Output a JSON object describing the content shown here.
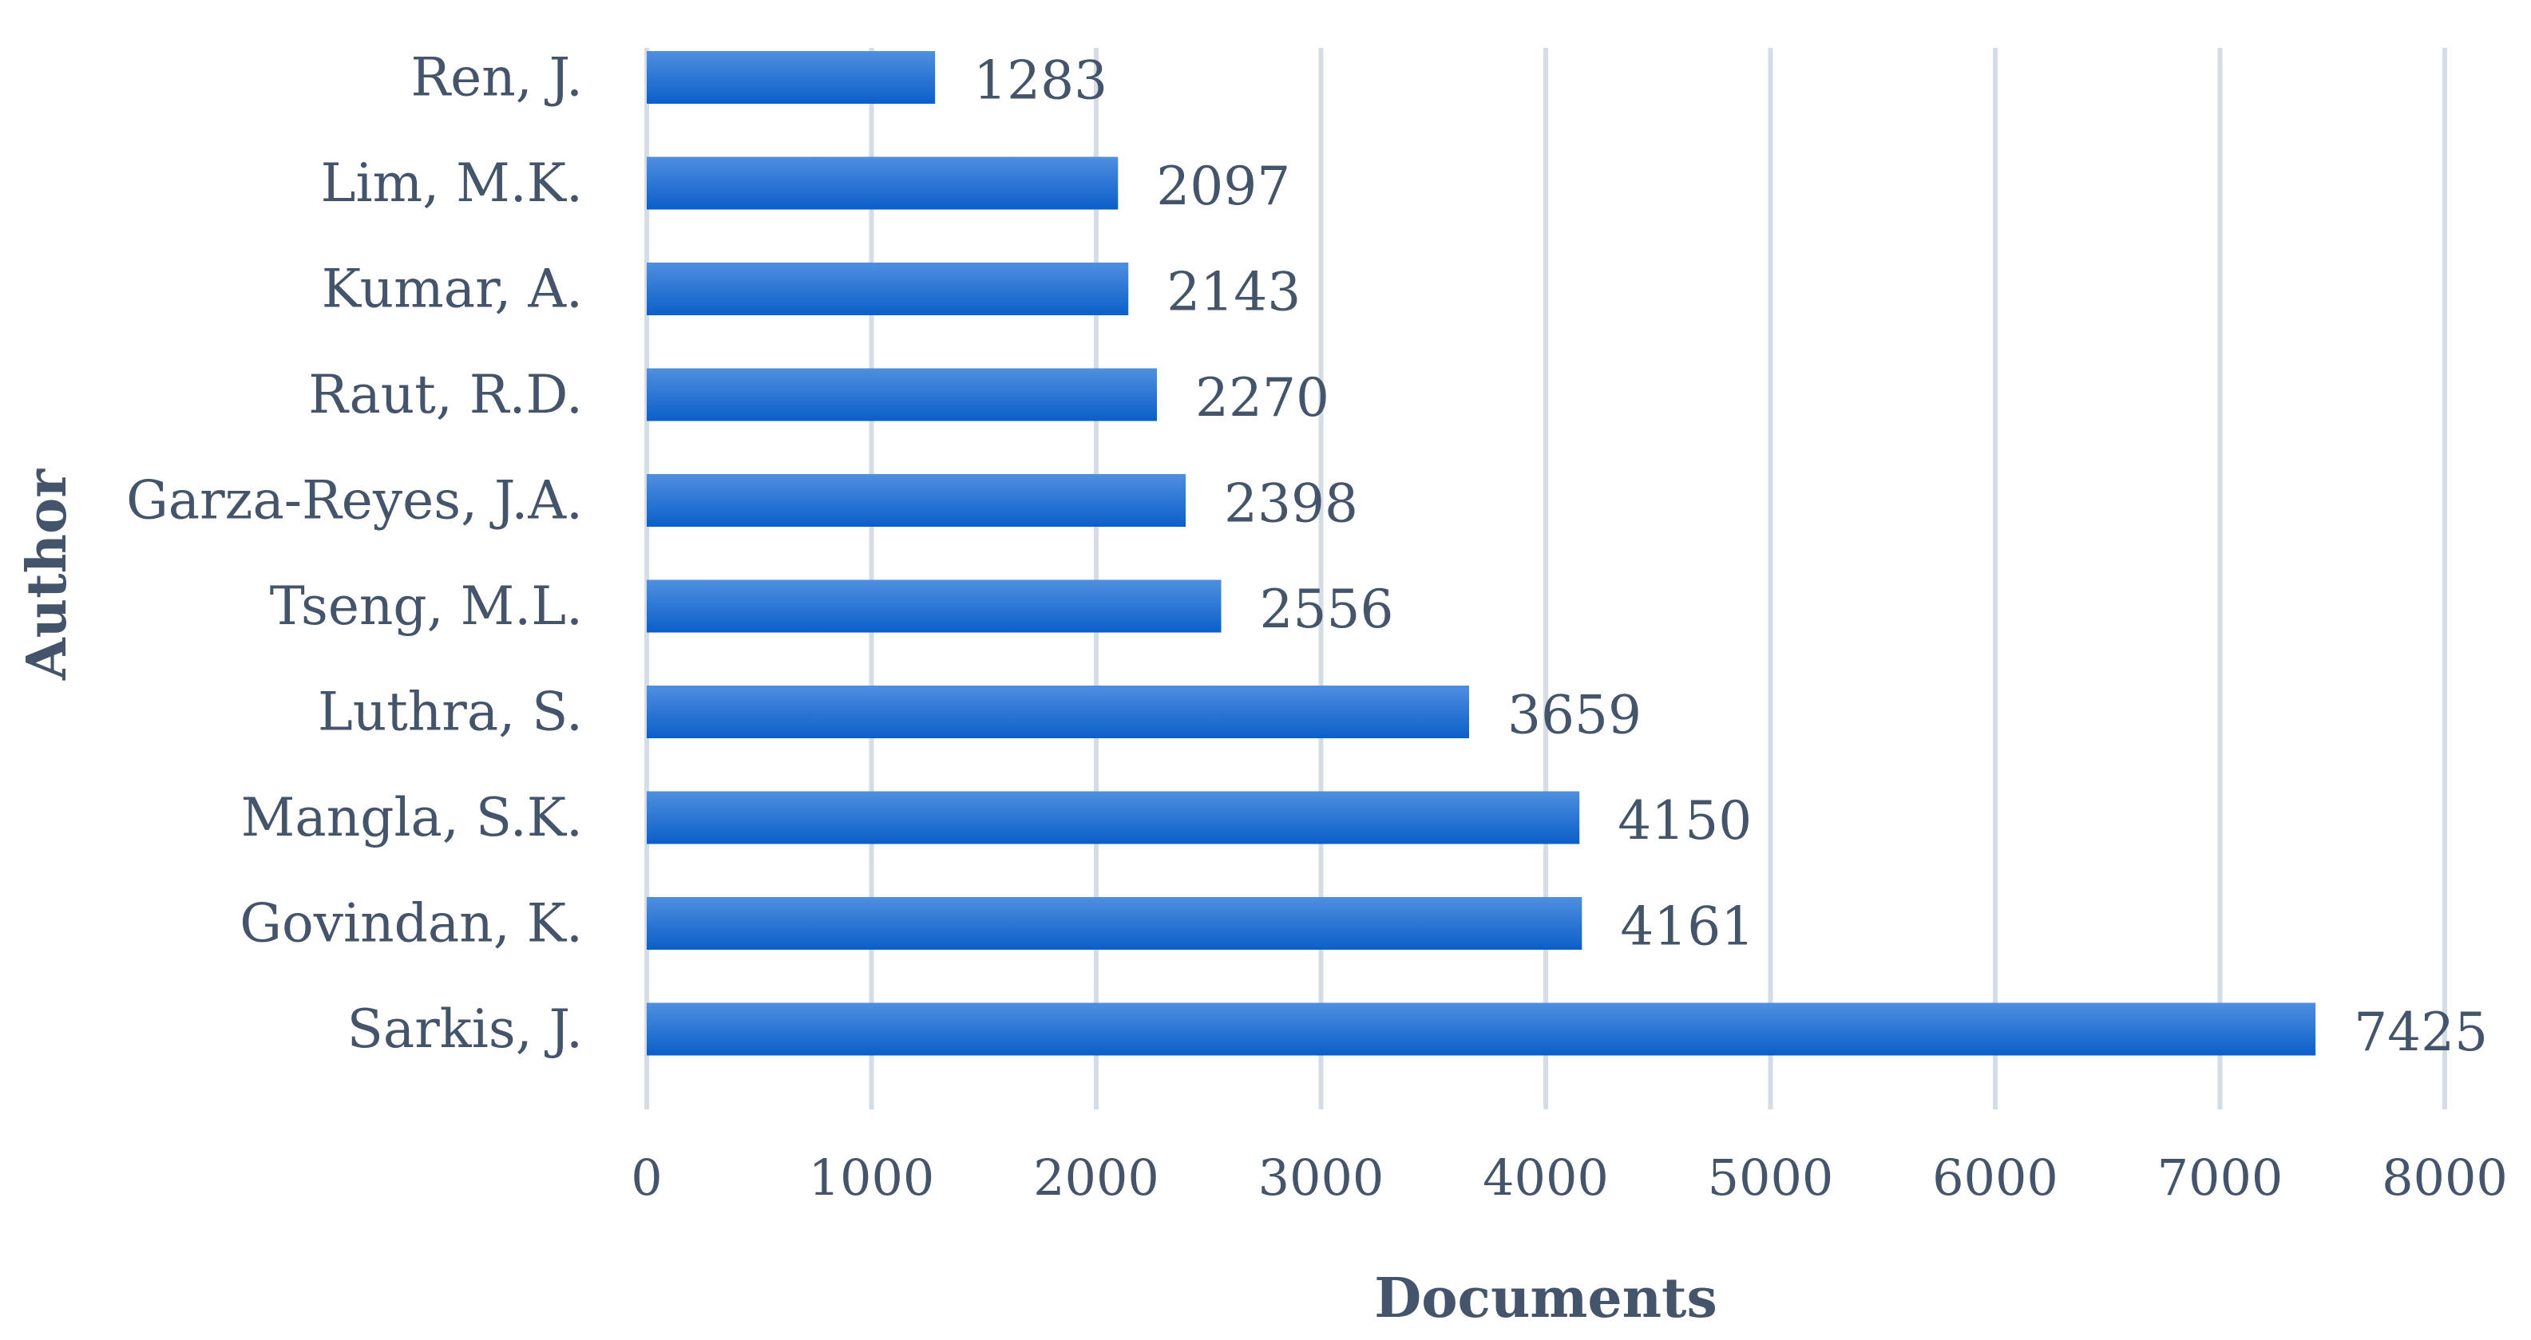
{
  "chart_data": {
    "type": "bar",
    "orientation": "horizontal",
    "categories": [
      "Ren, J.",
      "Lim, M.K.",
      "Kumar, A.",
      "Raut, R.D.",
      "Garza-Reyes, J.A.",
      "Tseng, M.L.",
      "Luthra, S.",
      "Mangla, S.K.",
      "Govindan, K.",
      "Sarkis, J."
    ],
    "values": [
      1283,
      2097,
      2143,
      2270,
      2398,
      2556,
      3659,
      4150,
      4161,
      7425
    ],
    "data_labels": [
      "1283",
      "2097",
      "2143",
      "2270",
      "2398",
      "2556",
      "3659",
      "4150",
      "4161",
      "7425"
    ],
    "xlabel": "Documents",
    "ylabel": "Author",
    "xlim": [
      0,
      8000
    ],
    "x_ticks": [
      0,
      1000,
      2000,
      3000,
      4000,
      5000,
      6000,
      7000,
      8000
    ],
    "x_tick_labels": [
      "0",
      "1000",
      "2000",
      "3000",
      "4000",
      "5000",
      "6000",
      "7000",
      "8000"
    ],
    "grid": "vertical",
    "legend": "none",
    "colors": {
      "bar_top": "#4f8fe0",
      "bar_bottom": "#0b5fc9",
      "text": "#44546a",
      "grid": "#d6dce4"
    }
  }
}
